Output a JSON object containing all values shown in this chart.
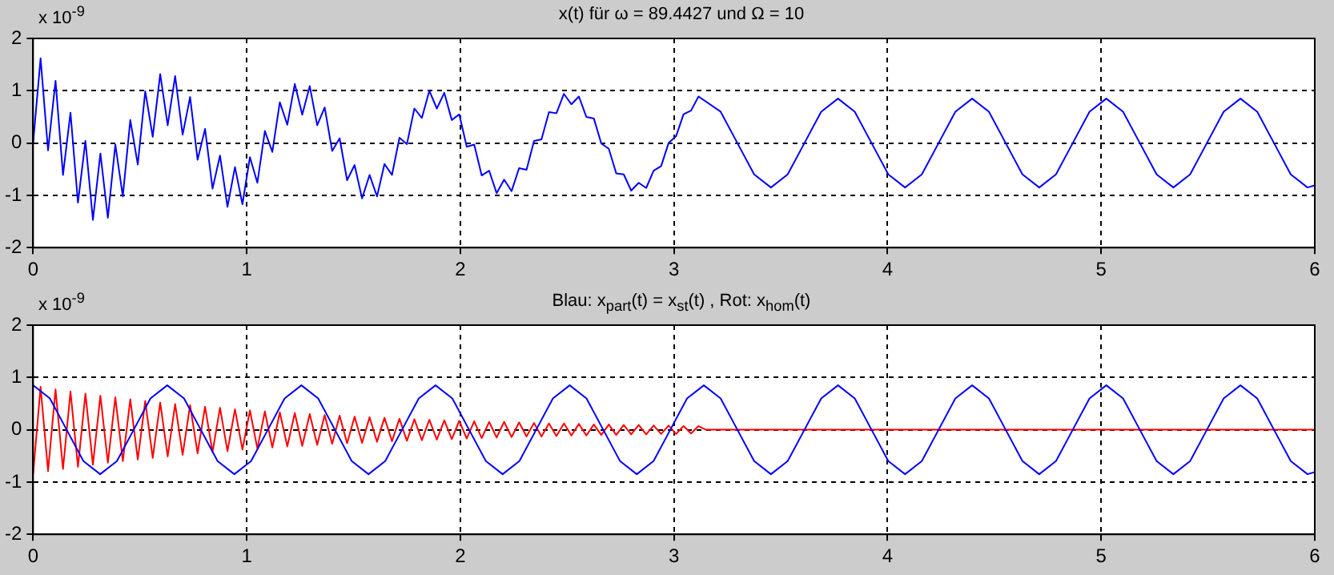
{
  "chart_data": [
    {
      "type": "line",
      "title": "x(t) für ω = 89.4427 und Ω = 10",
      "annotations": [
        "x 10$^{-9}$"
      ],
      "xlim": [
        0,
        6
      ],
      "xticks": [
        0,
        1,
        2,
        3,
        4,
        5,
        6
      ],
      "ylim": [
        -2,
        2
      ],
      "yticks": [
        -2,
        -1,
        0,
        1,
        2
      ],
      "grid": true,
      "series": [
        {
          "color": "#0000ff",
          "x": [
            0,
            0.035,
            0.07,
            0.105,
            0.14,
            0.175,
            0.21,
            0.245,
            0.28,
            0.315,
            0.35,
            0.385,
            0.42,
            0.455,
            0.49,
            0.525,
            0.56,
            0.595,
            0.63,
            0.665,
            0.7,
            0.735,
            0.77,
            0.805,
            0.84,
            0.875,
            0.91,
            0.945,
            0.98,
            1.015,
            1.05,
            1.085,
            1.12,
            1.155,
            1.19,
            1.225,
            1.26,
            1.295,
            1.33,
            1.365,
            1.4,
            1.435,
            1.47,
            1.505,
            1.54,
            1.575,
            1.61,
            1.645,
            1.68,
            1.715,
            1.75,
            1.785,
            1.82,
            1.855,
            1.89,
            1.925,
            1.96,
            1.995,
            2.03,
            2.065,
            2.1,
            2.135,
            2.17,
            2.205,
            2.24,
            2.275,
            2.31,
            2.345,
            2.38,
            2.415,
            2.45,
            2.485,
            2.52,
            2.555,
            2.59,
            2.625,
            2.66,
            2.695,
            2.73,
            2.765,
            2.8,
            2.835,
            2.87,
            2.905,
            2.94,
            2.975,
            3.01,
            3.045,
            3.08,
            3.115,
            3.2185,
            3.297,
            3.3755,
            3.454,
            3.5325,
            3.611,
            3.6895,
            3.768,
            3.8465,
            3.925,
            4.0035,
            4.082,
            4.1605,
            4.239,
            4.3175,
            4.396,
            4.4745,
            4.553,
            4.6315,
            4.71,
            4.7885,
            4.867,
            4.9455,
            5.024,
            5.1025,
            5.181,
            5.2595,
            5.338,
            5.4165,
            5.495,
            5.5735,
            5.652,
            5.7305,
            5.809,
            5.8875,
            5.966,
            6
          ],
          "values": [
            0,
            1.62,
            -0.14,
            1.19,
            -0.61,
            0.58,
            -1.14,
            0.04,
            -1.47,
            -0.2,
            -1.43,
            -0.03,
            -1.02,
            0.44,
            -0.41,
            0.99,
            0.12,
            1.32,
            0.34,
            1.28,
            0.16,
            0.88,
            -0.32,
            0.27,
            -0.87,
            -0.24,
            -1.22,
            -0.46,
            -1.17,
            -0.27,
            -0.76,
            0.23,
            -0.17,
            0.78,
            0.35,
            1.13,
            0.54,
            1.09,
            0.34,
            0.68,
            -0.15,
            0.09,
            -0.71,
            -0.42,
            -1.06,
            -0.61,
            -1.02,
            -0.4,
            -0.61,
            0.1,
            -0.02,
            0.66,
            0.48,
            1,
            0.66,
            0.96,
            0.44,
            0.55,
            -0.07,
            -0.03,
            -0.62,
            -0.53,
            -0.96,
            -0.7,
            -0.92,
            -0.48,
            -0.51,
            0.04,
            0.07,
            0.59,
            0.57,
            0.94,
            0.74,
            0.89,
            0.5,
            0.47,
            -0.01,
            -0.11,
            -0.58,
            -0.6,
            -0.91,
            -0.76,
            -0.86,
            -0.53,
            -0.44,
            0,
            0.13,
            0.55,
            0.62,
            0.89,
            0.6,
            0,
            -0.6,
            -0.85,
            -0.6,
            0,
            0.6,
            0.85,
            0.6,
            0,
            -0.6,
            -0.85,
            -0.6,
            0,
            0.6,
            0.85,
            0.6,
            0,
            -0.6,
            -0.85,
            -0.6,
            0,
            0.6,
            0.85,
            0.6,
            0,
            -0.6,
            -0.85,
            -0.6,
            0,
            0.6,
            0.85,
            0.6,
            0,
            -0.6,
            -0.85,
            -0.81
          ]
        }
      ]
    },
    {
      "type": "line",
      "title": "Blau: x$_{part}$(t) = x$_{st}$(t) ,  Rot: x$_{hom}$(t)",
      "annotations": [
        "x 10$^{-9}$"
      ],
      "xlim": [
        0,
        6
      ],
      "xticks": [
        0,
        1,
        2,
        3,
        4,
        5,
        6
      ],
      "ylim": [
        -2,
        2
      ],
      "yticks": [
        -2,
        -1,
        0,
        1,
        2
      ],
      "grid": true,
      "series": [
        {
          "color": "#0000ff",
          "x": [
            0,
            0.0785,
            0.157,
            0.2355,
            0.314,
            0.3925,
            0.471,
            0.5495,
            0.628,
            0.7065,
            0.785,
            0.8635,
            0.942,
            1.0205,
            1.099,
            1.1775,
            1.256,
            1.3345,
            1.413,
            1.4915,
            1.57,
            1.6485,
            1.727,
            1.8055,
            1.884,
            1.9625,
            2.041,
            2.1195,
            2.198,
            2.2765,
            2.355,
            2.4335,
            2.512,
            2.5905,
            2.669,
            2.7475,
            2.826,
            2.9045,
            2.983,
            3.0615,
            3.14,
            3.2185,
            3.297,
            3.3755,
            3.454,
            3.5325,
            3.611,
            3.6895,
            3.768,
            3.8465,
            3.925,
            4.0035,
            4.082,
            4.1605,
            4.239,
            4.3175,
            4.396,
            4.4745,
            4.553,
            4.6315,
            4.71,
            4.7885,
            4.867,
            4.9455,
            5.024,
            5.1025,
            5.181,
            5.2595,
            5.338,
            5.4165,
            5.495,
            5.5735,
            5.652,
            5.7305,
            5.809,
            5.8875,
            5.966,
            6
          ],
          "values": [
            0.85,
            0.6,
            0,
            -0.6,
            -0.85,
            -0.6,
            0,
            0.6,
            0.85,
            0.6,
            0,
            -0.6,
            -0.85,
            -0.6,
            0,
            0.6,
            0.85,
            0.6,
            0,
            -0.6,
            -0.85,
            -0.6,
            0,
            0.6,
            0.85,
            0.6,
            0,
            -0.6,
            -0.85,
            -0.6,
            0,
            0.6,
            0.85,
            0.6,
            0,
            -0.6,
            -0.85,
            -0.6,
            0,
            0.6,
            0.85,
            0.6,
            0,
            -0.6,
            -0.85,
            -0.6,
            0,
            0.6,
            0.85,
            0.6,
            0,
            -0.6,
            -0.85,
            -0.6,
            0,
            0.6,
            0.85,
            0.6,
            0,
            -0.6,
            -0.85,
            -0.6,
            0,
            0.6,
            0.85,
            0.6,
            0,
            -0.6,
            -0.85,
            -0.6,
            0,
            0.6,
            0.85,
            0.6,
            0,
            -0.6,
            -0.85,
            -0.81
          ]
        },
        {
          "color": "#ff0000",
          "x": [
            0,
            0.035,
            0.07,
            0.105,
            0.14,
            0.175,
            0.21,
            0.245,
            0.28,
            0.315,
            0.35,
            0.385,
            0.42,
            0.455,
            0.49,
            0.525,
            0.56,
            0.595,
            0.63,
            0.665,
            0.7,
            0.735,
            0.77,
            0.805,
            0.84,
            0.875,
            0.91,
            0.945,
            0.98,
            1.015,
            1.05,
            1.085,
            1.12,
            1.155,
            1.19,
            1.225,
            1.26,
            1.295,
            1.33,
            1.365,
            1.4,
            1.435,
            1.47,
            1.505,
            1.54,
            1.575,
            1.61,
            1.645,
            1.68,
            1.715,
            1.75,
            1.785,
            1.82,
            1.855,
            1.89,
            1.925,
            1.96,
            1.995,
            2.03,
            2.065,
            2.1,
            2.135,
            2.17,
            2.205,
            2.24,
            2.275,
            2.31,
            2.345,
            2.38,
            2.415,
            2.45,
            2.485,
            2.52,
            2.555,
            2.59,
            2.625,
            2.66,
            2.695,
            2.73,
            2.765,
            2.8,
            2.835,
            2.87,
            2.905,
            2.94,
            2.975,
            3.01,
            3.045,
            3.08,
            3.115,
            3.15,
            6
          ],
          "values": [
            -0.85,
            0.82,
            -0.79,
            0.77,
            -0.75,
            0.73,
            -0.71,
            0.69,
            -0.67,
            0.65,
            -0.63,
            0.62,
            -0.6,
            0.58,
            -0.57,
            0.55,
            -0.54,
            0.52,
            -0.51,
            0.49,
            -0.48,
            0.47,
            -0.45,
            0.44,
            -0.43,
            0.42,
            -0.41,
            0.39,
            -0.38,
            0.37,
            -0.36,
            0.35,
            -0.34,
            0.33,
            -0.32,
            0.32,
            -0.31,
            0.3,
            -0.29,
            0.28,
            -0.27,
            0.27,
            -0.26,
            0.25,
            -0.25,
            0.24,
            -0.23,
            0.23,
            -0.22,
            0.21,
            -0.21,
            0.2,
            -0.2,
            0.19,
            -0.19,
            0.18,
            -0.18,
            0.17,
            -0.17,
            0.16,
            -0.16,
            0.15,
            -0.15,
            0.15,
            -0.14,
            0.14,
            -0.13,
            0.13,
            -0.13,
            0.12,
            -0.12,
            0.12,
            -0.11,
            0.11,
            -0.11,
            0.1,
            -0.1,
            0.1,
            -0.1,
            0.09,
            -0.09,
            0.09,
            -0.09,
            0.08,
            -0.08,
            0.08,
            -0.08,
            0.07,
            -0.07,
            0.07,
            0,
            0
          ]
        }
      ]
    }
  ]
}
